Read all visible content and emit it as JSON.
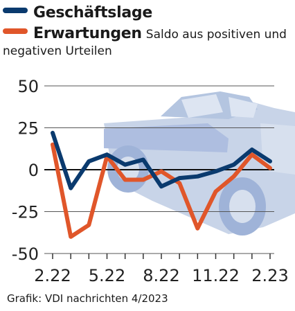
{
  "legend": {
    "items": [
      {
        "label": "Geschäftslage",
        "color": "#0a3a6e"
      },
      {
        "label": "Erwartungen",
        "color": "#e0562a",
        "note": "Saldo aus positiven und"
      }
    ],
    "note_line2": "negativen Urteilen"
  },
  "source": "Grafik: VDI nachrichten 4/2023",
  "chart_data": {
    "type": "line",
    "x_tick_labels": [
      "2.22",
      "5.22",
      "8.22",
      "11.22",
      "2.23"
    ],
    "y_ticks": [
      50,
      25,
      0,
      -25,
      -50
    ],
    "y_tick_labels": [
      "50",
      "25",
      "0",
      "-25",
      "-50"
    ],
    "ylim": [
      -50,
      50
    ],
    "x": [
      "2.22",
      "3.22",
      "4.22",
      "5.22",
      "6.22",
      "7.22",
      "8.22",
      "9.22",
      "10.22",
      "11.22",
      "12.22",
      "1.23",
      "2.23"
    ],
    "series": [
      {
        "name": "Geschäftslage",
        "color": "#0a3a6e",
        "values": [
          22,
          -11,
          5,
          9,
          3,
          6,
          -10,
          -5,
          -4,
          -1,
          3,
          12,
          5
        ]
      },
      {
        "name": "Erwartungen",
        "color": "#e0562a",
        "values": [
          15,
          -40,
          -33,
          8,
          -6,
          -6,
          -1,
          -8,
          -35,
          -13,
          -4,
          9,
          1
        ]
      }
    ],
    "grid": true,
    "background_image": "car"
  }
}
